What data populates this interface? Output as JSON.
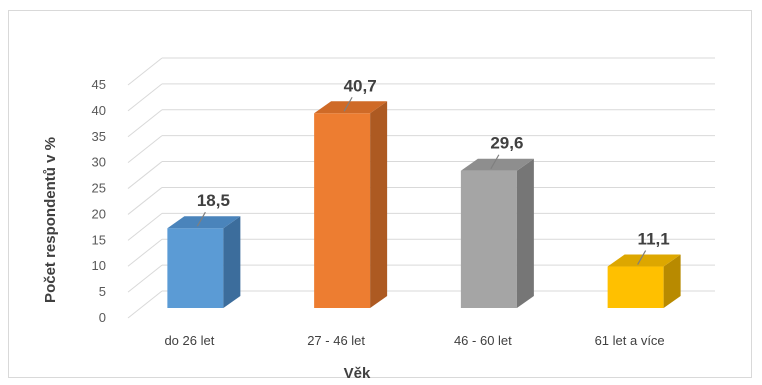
{
  "chart_data": {
    "type": "bar",
    "style": "3d-column",
    "categories": [
      "do 26 let",
      "27 - 46 let",
      "46 - 60 let",
      "61 let a více"
    ],
    "values": [
      18.5,
      40.7,
      29.6,
      11.1
    ],
    "value_labels": [
      "18,5",
      "40,7",
      "29,6",
      "11,1"
    ],
    "xlabel": "Věk",
    "ylabel": "Počet respondentů v %",
    "ylim": [
      0,
      45
    ],
    "yticks": [
      0,
      5,
      10,
      15,
      20,
      25,
      30,
      35,
      40,
      45
    ],
    "grid": true,
    "legend": "none",
    "colors": [
      "#5b9bd5",
      "#ed7d31",
      "#a5a5a5",
      "#ffc000"
    ],
    "side_colors": [
      "#3c6d9c",
      "#ad5a22",
      "#767676",
      "#b88a00"
    ],
    "top_colors": [
      "#4a84bb",
      "#cf6a27",
      "#8e8e8e",
      "#dda700"
    ]
  }
}
